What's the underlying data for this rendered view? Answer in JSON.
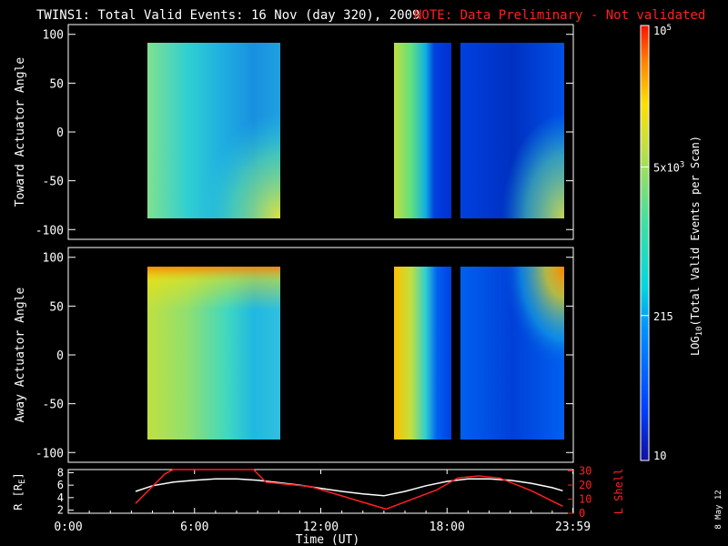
{
  "header": {
    "title": "TWINS1: Total Valid Events: 16 Nov (day 320), 2009",
    "note": "NOTE: Data Preliminary - Not validated",
    "note_color": "#ff2020"
  },
  "footer": {
    "date_stamp": "8 May 12"
  },
  "chart_data": [
    {
      "type": "heatmap",
      "ylabel": "Toward Actuator Angle",
      "ylim": [
        -110,
        110
      ],
      "yticks": [
        "100",
        "50",
        "0",
        "-50",
        "-100"
      ],
      "data_blocks": [
        {
          "t_start_h": 3.25,
          "t_end_h": 9.6,
          "angle_range": [
            -88,
            90
          ],
          "tone": "green-cyan",
          "note": "strong near 4-7 UT, brighter lower-right"
        },
        {
          "t_start_h": 15.1,
          "t_end_h": 17.9,
          "angle_range": [
            -88,
            90
          ],
          "tone": "green-to-blue"
        },
        {
          "t_start_h": 18.2,
          "t_end_h": 23.3,
          "angle_range": [
            -88,
            90
          ],
          "tone": "blue",
          "note": "yellow patch at lower-right"
        }
      ]
    },
    {
      "type": "heatmap",
      "ylabel": "Away Actuator Angle",
      "ylim": [
        -110,
        110
      ],
      "yticks": [
        "100",
        "50",
        "0",
        "-50",
        "-100"
      ],
      "data_blocks": [
        {
          "t_start_h": 3.25,
          "t_end_h": 9.6,
          "angle_range": [
            -88,
            90
          ],
          "tone": "yellow-cyan",
          "note": "orange at top near 7-9 UT"
        },
        {
          "t_start_h": 15.1,
          "t_end_h": 17.9,
          "angle_range": [
            -88,
            90
          ],
          "tone": "orange-to-blue"
        },
        {
          "t_start_h": 18.2,
          "t_end_h": 23.3,
          "angle_range": [
            -88,
            90
          ],
          "tone": "blue",
          "note": "orange at top-right"
        }
      ]
    },
    {
      "type": "line",
      "xlabel": "Time (UT)",
      "xticks": [
        "0:00",
        "6:00",
        "12:00",
        "18:00",
        "23:59"
      ],
      "xlim": [
        0,
        24
      ],
      "ylabel_left": "R [R",
      "ylabel_left_sub": "E",
      "ylabel_left_close": "]",
      "yticks_left": [
        "8",
        "6",
        "4",
        "2"
      ],
      "ylim_left": [
        1.5,
        8.5
      ],
      "ylabel_right": "L Shell",
      "yticks_right": [
        "30",
        "20",
        "10",
        "0"
      ],
      "ylim_right": [
        0,
        31
      ],
      "series": [
        {
          "color": "#ffffff",
          "x": [
            3.2,
            4,
            5,
            6,
            7,
            8,
            9,
            10,
            11,
            12,
            13,
            14,
            15,
            16,
            17,
            18,
            19,
            20,
            21,
            22,
            23,
            23.5
          ],
          "values": [
            5.0,
            5.9,
            6.5,
            6.8,
            7.0,
            7.0,
            6.8,
            6.4,
            6.0,
            5.5,
            5.0,
            4.6,
            4.3,
            5.0,
            5.9,
            6.6,
            7.0,
            7.0,
            6.8,
            6.3,
            5.6,
            5.1
          ]
        },
        {
          "color": "#ff2020",
          "x": [
            3.2,
            4.6,
            5.0,
            8.8,
            9.4,
            11.5,
            15.1,
            17.5,
            18.5,
            19.5,
            20.5,
            22.0,
            23.5
          ],
          "values": [
            7.0,
            28.0,
            31.0,
            31.0,
            22.0,
            19.0,
            3.0,
            16.5,
            25.0,
            26.5,
            25.0,
            16.0,
            5.0
          ]
        }
      ]
    },
    {
      "type": "colorbar",
      "label_main": "LOG",
      "label_sub": "10",
      "label_rest": "(Total Valid Events per Scan)",
      "ticks": [
        {
          "label": "10",
          "value": 10
        },
        {
          "label": "215",
          "value": 215
        },
        {
          "label": "5x10",
          "sup": "3",
          "value": 5000
        },
        {
          "label": "10",
          "sup": "5",
          "value": 100000
        }
      ],
      "range": [
        10,
        100000
      ],
      "scale": "log",
      "colors": [
        "#1010a0",
        "#0040ff",
        "#00a0ff",
        "#00e0e0",
        "#40e0a0",
        "#c0e040",
        "#ffe000",
        "#ff8000",
        "#ff1000"
      ]
    }
  ]
}
